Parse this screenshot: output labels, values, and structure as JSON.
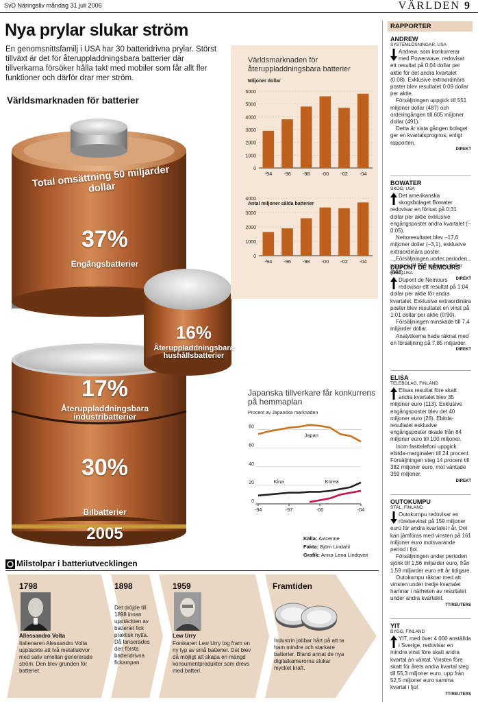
{
  "header": {
    "left": "SvD Näringsliv måndag 31 juli 2006",
    "section": "VÄRLDEN",
    "page": "9"
  },
  "headline": "Nya prylar slukar ström",
  "lede": "En genomsnittsfamilj i USA har 30 batteridrivna prylar. Störst tillväxt är det för återuppladdningsbara batterier där tillverkarna försöker hålla takt med mobiler som får allt fler funktioner och därför drar mer ström.",
  "world_title": "Världsmarknaden för batterier",
  "battery": {
    "total": "Total omsättning 50 miljarder dollar",
    "seg1_pct": "37%",
    "seg1_label": "Engångsbatterier",
    "seg2_pct": "16%",
    "seg2_label_1": "Återuppladdningsbara",
    "seg2_label_2": "hushållsbatterier",
    "seg3_pct": "17%",
    "seg3_label_1": "Återuppladdningsbara",
    "seg3_label_2": "industribatterier",
    "seg4_pct": "30%",
    "seg4_label": "Bilbatterier",
    "year": "2005",
    "colors": {
      "copper": "#b2612a",
      "silver": "#c9c9c9"
    }
  },
  "chart_data": [
    {
      "type": "bar",
      "title": "Världsmarknaden för återuppladdningsbara batterier",
      "ylabel": "Miljoner dollar",
      "categories": [
        "-94",
        "-96",
        "-98",
        "-00",
        "-02",
        "-04"
      ],
      "values": [
        2900,
        3800,
        4800,
        5600,
        4700,
        5800
      ],
      "yticks": [
        "0",
        "1000",
        "2000",
        "3000",
        "4000",
        "5000",
        "6000"
      ],
      "ylim": [
        0,
        6000
      ],
      "color": "#c0601e"
    },
    {
      "type": "bar",
      "ylabel": "Antal miljoner sålda batterier",
      "categories": [
        "-94",
        "-96",
        "-98",
        "-00",
        "-02",
        "-04"
      ],
      "values": [
        1650,
        1900,
        2600,
        3350,
        3300,
        3700
      ],
      "yticks": [
        "0",
        "1000",
        "2000",
        "3000",
        "4000"
      ],
      "ylim": [
        0,
        4000
      ],
      "color": "#c0601e"
    },
    {
      "type": "line",
      "title": "Japanska tillverkare får konkurrens på hemmaplan",
      "ylabel": "Procent av Japanska marknaden",
      "x": [
        1994,
        1995,
        1996,
        1997,
        1998,
        1999,
        2000,
        2001,
        2002,
        2003,
        2004
      ],
      "xticks": [
        "-94",
        "-97",
        "-00",
        "-04"
      ],
      "yticks": [
        "0",
        "20",
        "40",
        "60",
        "80"
      ],
      "ylim": [
        0,
        90
      ],
      "series": [
        {
          "name": "Japan",
          "values": [
            75,
            78,
            80,
            82,
            83,
            85,
            84,
            82,
            75,
            73,
            67
          ],
          "color": "#c8741e"
        },
        {
          "name": "Kina",
          "values": [
            9,
            10,
            11,
            12,
            12,
            13,
            13,
            14,
            16,
            18,
            23
          ],
          "color": "#222222"
        },
        {
          "name": "Korea",
          "values": [
            null,
            null,
            null,
            null,
            null,
            2,
            4,
            6,
            10,
            12,
            14
          ],
          "color": "#c8124a"
        }
      ]
    }
  ],
  "sources": {
    "kalla_label": "Källa:",
    "kalla": "Avicenne",
    "fakta_label": "Fakta:",
    "fakta": "Björn Lindahl",
    "grafik_label": "Grafik:",
    "grafik": "Anna-Lena Lindqvist"
  },
  "milestones": {
    "title": "Milstolpar i batteriutvecklingen",
    "items": [
      {
        "year": "1798",
        "name": "Allessandro Volta",
        "text": "Italienaren Alessandro Volta upptäckte att två metallskivor med saliv emellan genererade ström. Den blev grunden för batteriet."
      },
      {
        "year": "1898",
        "text": "Det dröjde till 1898 innan upptäckten av batteriet fick praktisk nytta. Då lanserades den första batteridrivna fickampan."
      },
      {
        "year": "1959",
        "name": "Lew Urry",
        "text": "Forskaren Lew Urry tog fram en ny typ av små batterier. Det blev då möjligt att skapa en mängd konsumentprodukter som drevs med batteri."
      },
      {
        "year": "Framtiden",
        "text": "Industrin jobbar hårt på att ta fram mindre och starkare batterier. Bland annat de nya digitalkamerorna slukar mycket kraft."
      }
    ]
  },
  "sidebar": {
    "title": "RAPPORTER",
    "companies": [
      {
        "name": "ANDREW",
        "sub": "SYSTEMLÖSNINGAR, USA",
        "dir": "down",
        "paras": [
          "Andrew, som konkurrerar med Powerwave, redovisat ett resultat på 0:04 dollar per aktie för det andra kvartalet (0:08). Exklusive extraordinära poster blev resultatet 0:09 dollar per aktie.",
          "Försäljningen uppgick till 551 miljoner dollar (487) och orderingången till 605 miljoner dollar (491).",
          "Detta är sista gången bolaget ger en kvartalsprognos, enligt rapporten."
        ],
        "credit": "DIREKT"
      },
      {
        "name": "BOWATER",
        "sub": "SKOG, USA",
        "dir": "up",
        "paras": [
          "Det amerikanska skogsbolaget Bowater redovisar en förlust på 0:31 dollar per aktie exklusive engångsposter andra kvartalet (–0:05).",
          "Nettoresultatet blev –17,6 miljoner dollar (–3,1), exklusive extraordinära poster.",
          "Försäljningen under perioden uppgick till 899 miljoner dollar (898)."
        ],
        "credit": "DIREKT"
      },
      {
        "name": "DUPONT DE NEMOURS",
        "sub": "KEMI, USA",
        "dir": "up",
        "paras": [
          "Dupont de Nemours redovisar ett resultat på 1:04 dollar per aktie för andra kvartalet. Exklusive extraordinära poster blev resultatet en vinst på 1:01 dollar per aktie (0:90).",
          "Försäljningen minskade till 7,4 miljarder dollar.",
          "Analytikerna hade räknat med en försäljning på 7,85 miljarder."
        ],
        "credit": "DIREKT"
      },
      {
        "name": "ELISA",
        "sub": "TELEBOLAG, FINLAND",
        "dir": "up",
        "paras": [
          "Elisas resultat före skatt andra kvartalet blev 35 miljoner euro (113). Exklusive engångsposter blev det 40 miljoner euro (26). Ebitda-resultatet exklusive engångsposter ökade från 84 miljoner euro till 100 miljoner.",
          "Inom fasttelefoni uppgick ebitda-marginalen till 24 procent. Försäljningen steg 14 procent till 382 miljoner euro, mot väntade 359 miljoner."
        ],
        "credit": "DIREKT"
      },
      {
        "name": "OUTOKUMPU",
        "sub": "STÅL, FINLAND",
        "dir": "down",
        "paras": [
          "Outokumpu redovisar en rörelsevinst på 159 miljoner euro för andra kvartalet i år. Det kan jämföras med vinsten på 161 miljoner euro motsvarande period i fjol.",
          "Försäljningen under perioden sjönk till 1,56 miljarder euro, från 1,59 miljarder euro ett år tidigare.",
          "Outokumpu räknar med att vinsten under tredje kvartalet hamnar i närheten av resultatet under andra kvartalet."
        ],
        "credit": "TT/REUTERS"
      },
      {
        "name": "YIT",
        "sub": "BYGG, FINLAND",
        "dir": "up",
        "paras": [
          "YIT, med över 4 000 anställda i Sverige, redovisar en mindre vinst före skatt andra kvartal än väntat. Vinsten före skatt för årets andra kvartal steg till 55,3 miljoner euro, upp från 52,5 miljoner euro samma kvartal i fjol."
        ],
        "credit": "TT/REUTERS"
      }
    ]
  }
}
